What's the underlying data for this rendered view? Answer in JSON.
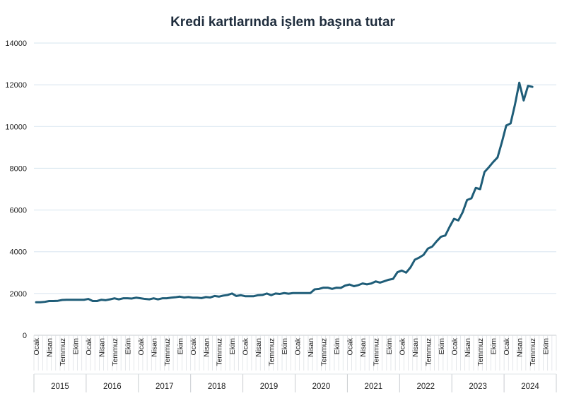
{
  "chart_data": {
    "type": "line",
    "title": "Kredi kartlarında işlem başına tutar",
    "xlabel": "",
    "ylabel": "",
    "ylim": [
      0,
      14000
    ],
    "yticks": [
      0,
      2000,
      4000,
      6000,
      8000,
      10000,
      12000,
      14000
    ],
    "grid": true,
    "legend": "none",
    "month_tick_labels": [
      "Ocak",
      "Nisan",
      "Temmuz",
      "Ekim"
    ],
    "years": [
      "2015",
      "2016",
      "2017",
      "2018",
      "2019",
      "2020",
      "2021",
      "2022",
      "2023",
      "2024"
    ],
    "series": [
      {
        "name": "Kredi kartlarında işlem başına tutar",
        "color": "#1f5d78",
        "start": "2015-01",
        "values": [
          1580,
          1580,
          1600,
          1640,
          1640,
          1650,
          1690,
          1700,
          1700,
          1700,
          1700,
          1700,
          1740,
          1640,
          1640,
          1700,
          1680,
          1720,
          1770,
          1720,
          1770,
          1770,
          1760,
          1800,
          1770,
          1740,
          1720,
          1770,
          1720,
          1770,
          1770,
          1800,
          1820,
          1850,
          1810,
          1830,
          1800,
          1800,
          1780,
          1830,
          1810,
          1880,
          1850,
          1900,
          1930,
          2000,
          1880,
          1920,
          1870,
          1870,
          1870,
          1920,
          1930,
          2000,
          1920,
          2000,
          1980,
          2020,
          1990,
          2020,
          2020,
          2020,
          2020,
          2020,
          2200,
          2220,
          2280,
          2280,
          2220,
          2280,
          2270,
          2380,
          2430,
          2350,
          2400,
          2480,
          2440,
          2480,
          2580,
          2520,
          2590,
          2660,
          2700,
          3020,
          3100,
          3000,
          3250,
          3620,
          3720,
          3850,
          4150,
          4250,
          4500,
          4720,
          4780,
          5200,
          5580,
          5500,
          5900,
          6480,
          6560,
          7060,
          7000,
          7820,
          8050,
          8300,
          8520,
          9250,
          10050,
          10150,
          11050,
          12100,
          11250,
          11950,
          11900
        ]
      }
    ]
  }
}
